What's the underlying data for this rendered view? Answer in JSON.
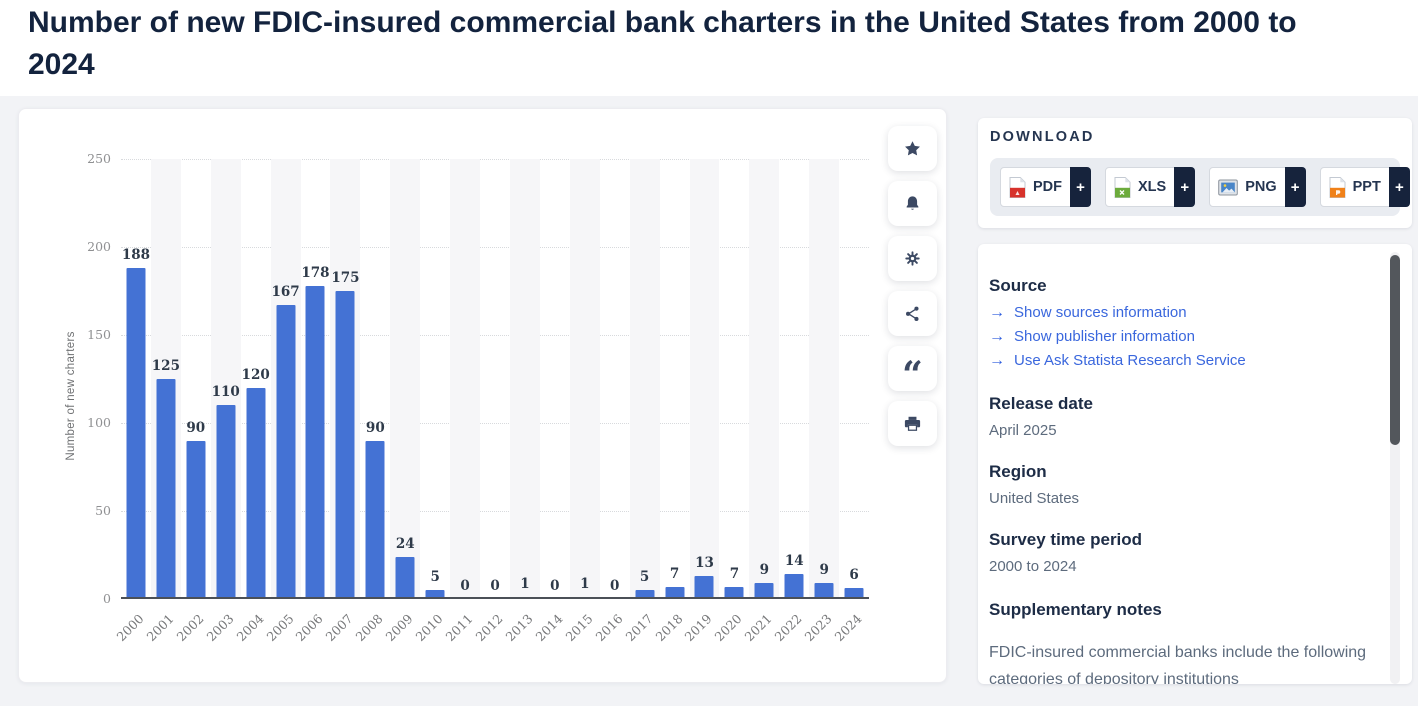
{
  "page": {
    "title_line1": "Number of new FDIC-insured commercial bank charters in the United States from 2000 to",
    "title_line2": "2024"
  },
  "chart_data": {
    "type": "bar",
    "title": "Number of new FDIC-insured commercial bank charters in the United States from 2000 to 2024",
    "categories": [
      "2000",
      "2001",
      "2002",
      "2003",
      "2004",
      "2005",
      "2006",
      "2007",
      "2008",
      "2009",
      "2010",
      "2011",
      "2012",
      "2013",
      "2014",
      "2015",
      "2016",
      "2017",
      "2018",
      "2019",
      "2020",
      "2021",
      "2022",
      "2023",
      "2024"
    ],
    "values": [
      188,
      125,
      90,
      110,
      120,
      167,
      178,
      175,
      90,
      24,
      5,
      0,
      0,
      1,
      0,
      1,
      0,
      5,
      7,
      13,
      7,
      9,
      14,
      9,
      6
    ],
    "xlabel": "",
    "ylabel": "Number of new charters",
    "y_ticks": [
      0,
      50,
      100,
      150,
      200,
      250
    ],
    "ylim": [
      0,
      250
    ],
    "grid": "horizontal-dotted",
    "bar_color": "#4472d4",
    "value_labels_shown": true,
    "plot_background": "alternating-vertical-stripes",
    "legend": "none"
  },
  "toolbar": {
    "items": [
      {
        "name": "favorite",
        "icon": "star-icon"
      },
      {
        "name": "alerts",
        "icon": "bell-icon"
      },
      {
        "name": "settings",
        "icon": "gear-icon"
      },
      {
        "name": "share",
        "icon": "share-icon"
      },
      {
        "name": "cite",
        "icon": "quote-icon"
      },
      {
        "name": "print",
        "icon": "print-icon"
      }
    ]
  },
  "download": {
    "heading": "DOWNLOAD",
    "buttons": [
      {
        "label": "PDF",
        "icon": "pdf-file-icon",
        "plus": "+"
      },
      {
        "label": "XLS",
        "icon": "xls-file-icon",
        "plus": "+"
      },
      {
        "label": "PNG",
        "icon": "png-image-icon",
        "plus": "+"
      },
      {
        "label": "PPT",
        "icon": "ppt-file-icon",
        "plus": "+"
      }
    ]
  },
  "details": {
    "source_heading": "Source",
    "source_links": [
      {
        "label": "Show sources information"
      },
      {
        "label": "Show publisher information"
      },
      {
        "label": "Use Ask Statista Research Service"
      }
    ],
    "release_date_heading": "Release date",
    "release_date": "April 2025",
    "region_heading": "Region",
    "region": "United States",
    "survey_heading": "Survey time period",
    "survey_period": "2000 to 2024",
    "notes_heading": "Supplementary notes",
    "notes_text": "FDIC-insured commercial banks include the following categories of depository institutions"
  },
  "colors": {
    "bar": "#4472d4",
    "link": "#3a67dd",
    "accent_dark": "#16233c",
    "title_text": "#13233e",
    "body_text": "#5d6b7d"
  }
}
